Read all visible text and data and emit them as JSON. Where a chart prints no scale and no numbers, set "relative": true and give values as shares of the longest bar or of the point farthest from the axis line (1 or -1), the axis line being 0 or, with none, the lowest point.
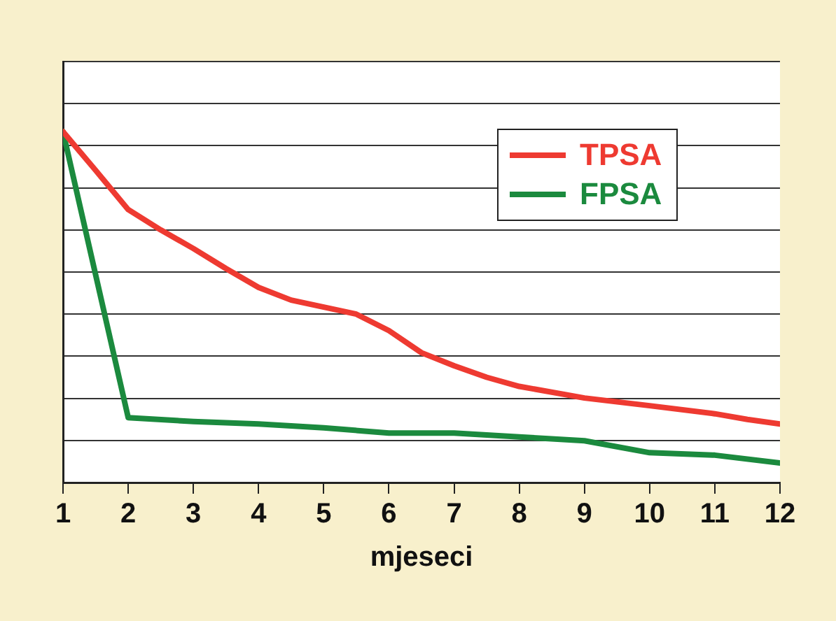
{
  "chart_data": {
    "type": "line",
    "relative": true,
    "xlabel": "mjeseci",
    "xlim": [
      1,
      12
    ],
    "xticks": [
      1,
      2,
      3,
      4,
      5,
      6,
      7,
      8,
      9,
      10,
      11,
      12
    ],
    "grid": "y",
    "legend": "top right",
    "marker": "none",
    "line_style": "solid",
    "series": [
      {
        "name": "TPSA",
        "color": "#ee3a31",
        "x": [
          1,
          1.5,
          2,
          2.5,
          3,
          3.5,
          4,
          4.5,
          5,
          5.5,
          6,
          6.5,
          7,
          7.5,
          8,
          9,
          10,
          11,
          11.5,
          12
        ],
        "values": [
          1,
          0.89,
          0.778,
          0.72,
          0.667,
          0.61,
          0.556,
          0.52,
          0.5,
          0.48,
          0.433,
          0.37,
          0.333,
          0.3,
          0.274,
          0.241,
          0.219,
          0.196,
          0.18,
          0.167
        ]
      },
      {
        "name": "FPSA",
        "color": "#1b8a3e",
        "x": [
          1,
          2,
          3,
          4,
          5,
          6,
          7,
          8,
          9,
          10,
          11,
          12
        ],
        "values": [
          1,
          0.185,
          0.174,
          0.167,
          0.156,
          0.141,
          0.141,
          0.13,
          0.119,
          0.085,
          0.078,
          0.056
        ]
      }
    ]
  }
}
